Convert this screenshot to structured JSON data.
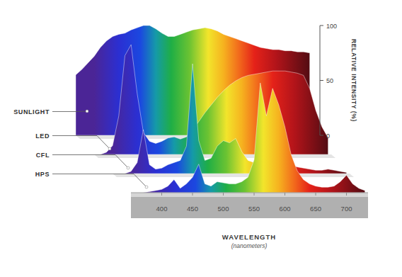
{
  "chart_data": {
    "type": "area",
    "x_label": "WAVELENGTH",
    "x_sublabel": "(nanometers)",
    "y_label": "RELATIVE INTENSITY (%)",
    "x": [
      350,
      360,
      370,
      380,
      390,
      400,
      410,
      420,
      430,
      440,
      450,
      460,
      470,
      480,
      490,
      500,
      510,
      520,
      530,
      540,
      550,
      560,
      570,
      580,
      590,
      600,
      610,
      620,
      630,
      640,
      650,
      660,
      670,
      680,
      690,
      700,
      710,
      720,
      730
    ],
    "xlim": [
      350,
      735
    ],
    "xticks": [
      400,
      450,
      500,
      550,
      600,
      650,
      700
    ],
    "ylim": [
      0,
      100
    ],
    "yticks": [
      0,
      50,
      100
    ],
    "series": [
      {
        "name": "SUNLIGHT",
        "values": [
          55,
          60,
          66,
          72,
          80,
          86,
          90,
          92,
          93,
          96,
          98,
          100,
          100,
          97,
          93,
          90,
          90,
          92,
          94,
          96,
          97,
          98,
          97,
          95,
          92,
          90,
          88,
          86,
          84,
          82,
          80,
          79,
          78,
          78,
          77,
          77,
          76,
          76,
          75
        ]
      },
      {
        "name": "LED",
        "values": [
          0,
          0,
          2,
          8,
          35,
          90,
          100,
          55,
          20,
          12,
          10,
          12,
          15,
          16,
          14,
          16,
          22,
          30,
          38,
          45,
          52,
          58,
          63,
          67,
          70,
          72,
          73,
          74,
          75,
          76,
          76,
          76,
          75,
          74,
          72,
          60,
          40,
          25,
          15
        ]
      },
      {
        "name": "CFL",
        "values": [
          0,
          0,
          0,
          2,
          10,
          40,
          8,
          4,
          5,
          8,
          10,
          12,
          25,
          100,
          30,
          12,
          14,
          25,
          30,
          28,
          32,
          20,
          12,
          10,
          14,
          18,
          22,
          15,
          10,
          8,
          6,
          5,
          4,
          3,
          3,
          4,
          3,
          2,
          1
        ]
      },
      {
        "name": "HPS",
        "values": [
          0,
          0,
          0,
          1,
          2,
          3,
          6,
          12,
          4,
          8,
          14,
          26,
          8,
          6,
          10,
          9,
          8,
          8,
          10,
          14,
          30,
          100,
          70,
          95,
          80,
          60,
          35,
          20,
          12,
          8,
          6,
          5,
          5,
          6,
          10,
          16,
          8,
          4,
          2
        ]
      }
    ]
  }
}
